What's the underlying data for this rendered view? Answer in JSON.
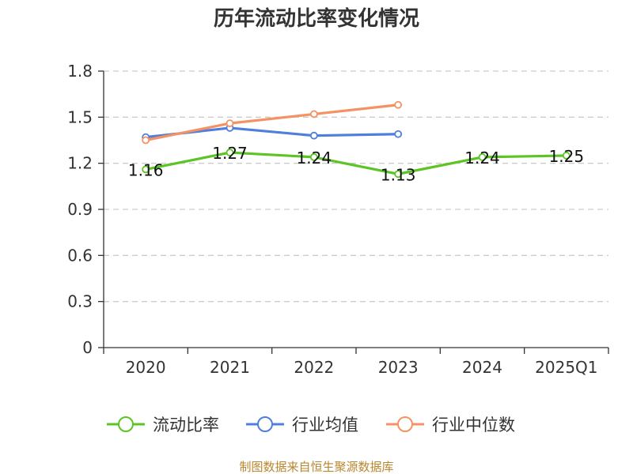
{
  "chart_data": {
    "type": "line",
    "title": "历年流动比率变化情况",
    "categories": [
      "2020",
      "2021",
      "2022",
      "2023",
      "2024",
      "2025Q1"
    ],
    "ylim": [
      0,
      1.8
    ],
    "yticks": [
      "0",
      "0.3",
      "0.6",
      "0.9",
      "1.2",
      "1.5",
      "1.8"
    ],
    "grid": true,
    "legend_position": "bottom",
    "series": [
      {
        "name": "流动比率",
        "color": "#5cc424",
        "values": [
          1.16,
          1.27,
          1.24,
          1.13,
          1.24,
          1.25
        ],
        "labels": [
          "1.16",
          "1.27",
          "1.24",
          "1.13",
          "1.24",
          "1.25"
        ]
      },
      {
        "name": "行业均值",
        "color": "#4e7fdc",
        "values": [
          1.37,
          1.43,
          1.38,
          1.39,
          null,
          null
        ]
      },
      {
        "name": "行业中位数",
        "color": "#f59263",
        "values": [
          1.35,
          1.46,
          1.52,
          1.58,
          null,
          null
        ]
      }
    ]
  },
  "source_text": "制图数据来自恒生聚源数据库"
}
